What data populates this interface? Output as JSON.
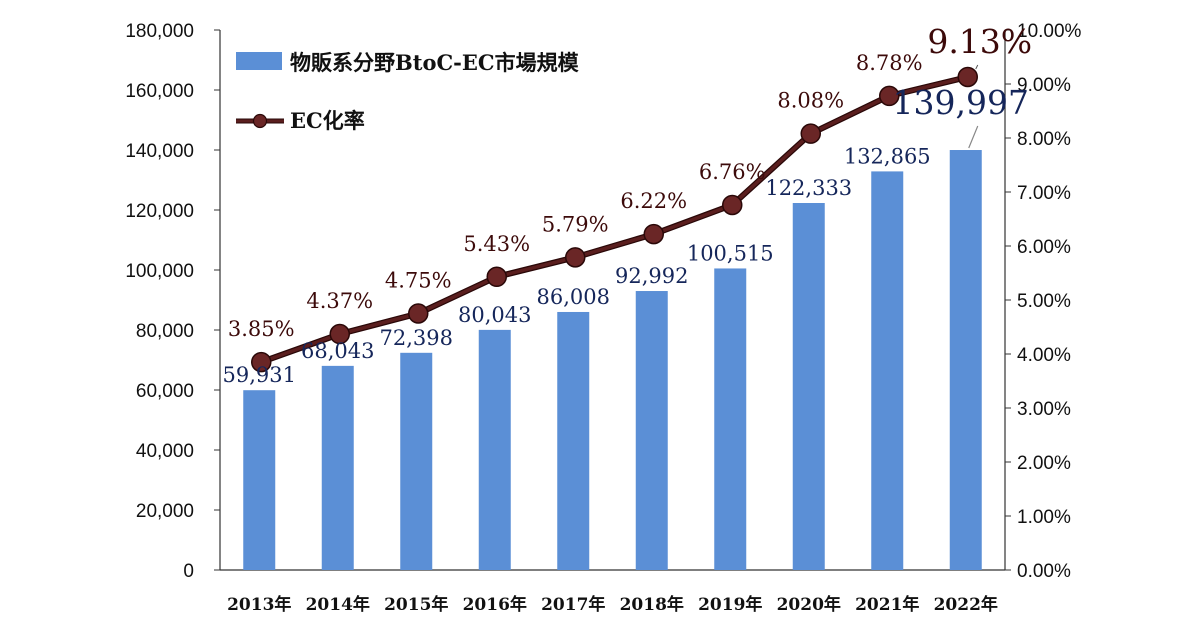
{
  "chart_data": {
    "type": "bar",
    "categories": [
      "2013年",
      "2014年",
      "2015年",
      "2016年",
      "2017年",
      "2018年",
      "2019年",
      "2020年",
      "2021年",
      "2022年"
    ],
    "series": [
      {
        "name": "物販系分野BtoC-EC市場規模",
        "type": "bar",
        "axis": "left",
        "color": "#5b8fd6",
        "values": [
          59931,
          68043,
          72398,
          80043,
          86008,
          92992,
          100515,
          122333,
          132865,
          139997
        ],
        "labels": [
          "59,931",
          "68,043",
          "72,398",
          "80,043",
          "86,008",
          "92,992",
          "100,515",
          "122,333",
          "132,865",
          "139,997"
        ]
      },
      {
        "name": "EC化率",
        "type": "line",
        "axis": "right",
        "color": "#5a1e1e",
        "values": [
          3.85,
          4.37,
          4.75,
          5.43,
          5.79,
          6.22,
          6.76,
          8.08,
          8.78,
          9.13
        ],
        "labels": [
          "3.85%",
          "4.37%",
          "4.75%",
          "5.43%",
          "5.79%",
          "6.22%",
          "6.76%",
          "8.08%",
          "8.78%",
          "9.13%"
        ]
      }
    ],
    "left_axis": {
      "ylim": [
        0,
        180000
      ],
      "ticks": [
        0,
        20000,
        40000,
        60000,
        80000,
        100000,
        120000,
        140000,
        160000,
        180000
      ],
      "tick_labels": [
        "0",
        "20,000",
        "40,000",
        "60,000",
        "80,000",
        "100,000",
        "120,000",
        "140,000",
        "160,000",
        "180,000"
      ]
    },
    "right_axis": {
      "ylim": [
        0,
        10
      ],
      "ticks": [
        0,
        1,
        2,
        3,
        4,
        5,
        6,
        7,
        8,
        9,
        10
      ],
      "tick_labels": [
        "0.00%",
        "1.00%",
        "2.00%",
        "3.00%",
        "4.00%",
        "5.00%",
        "6.00%",
        "7.00%",
        "8.00%",
        "9.00%",
        "10.00%"
      ]
    },
    "legend": {
      "placement": "top-left",
      "bar_label": "物販系分野BtoC-EC市場規模",
      "line_label": "EC化率"
    },
    "grid": false,
    "highlighted_category": "2022年"
  }
}
